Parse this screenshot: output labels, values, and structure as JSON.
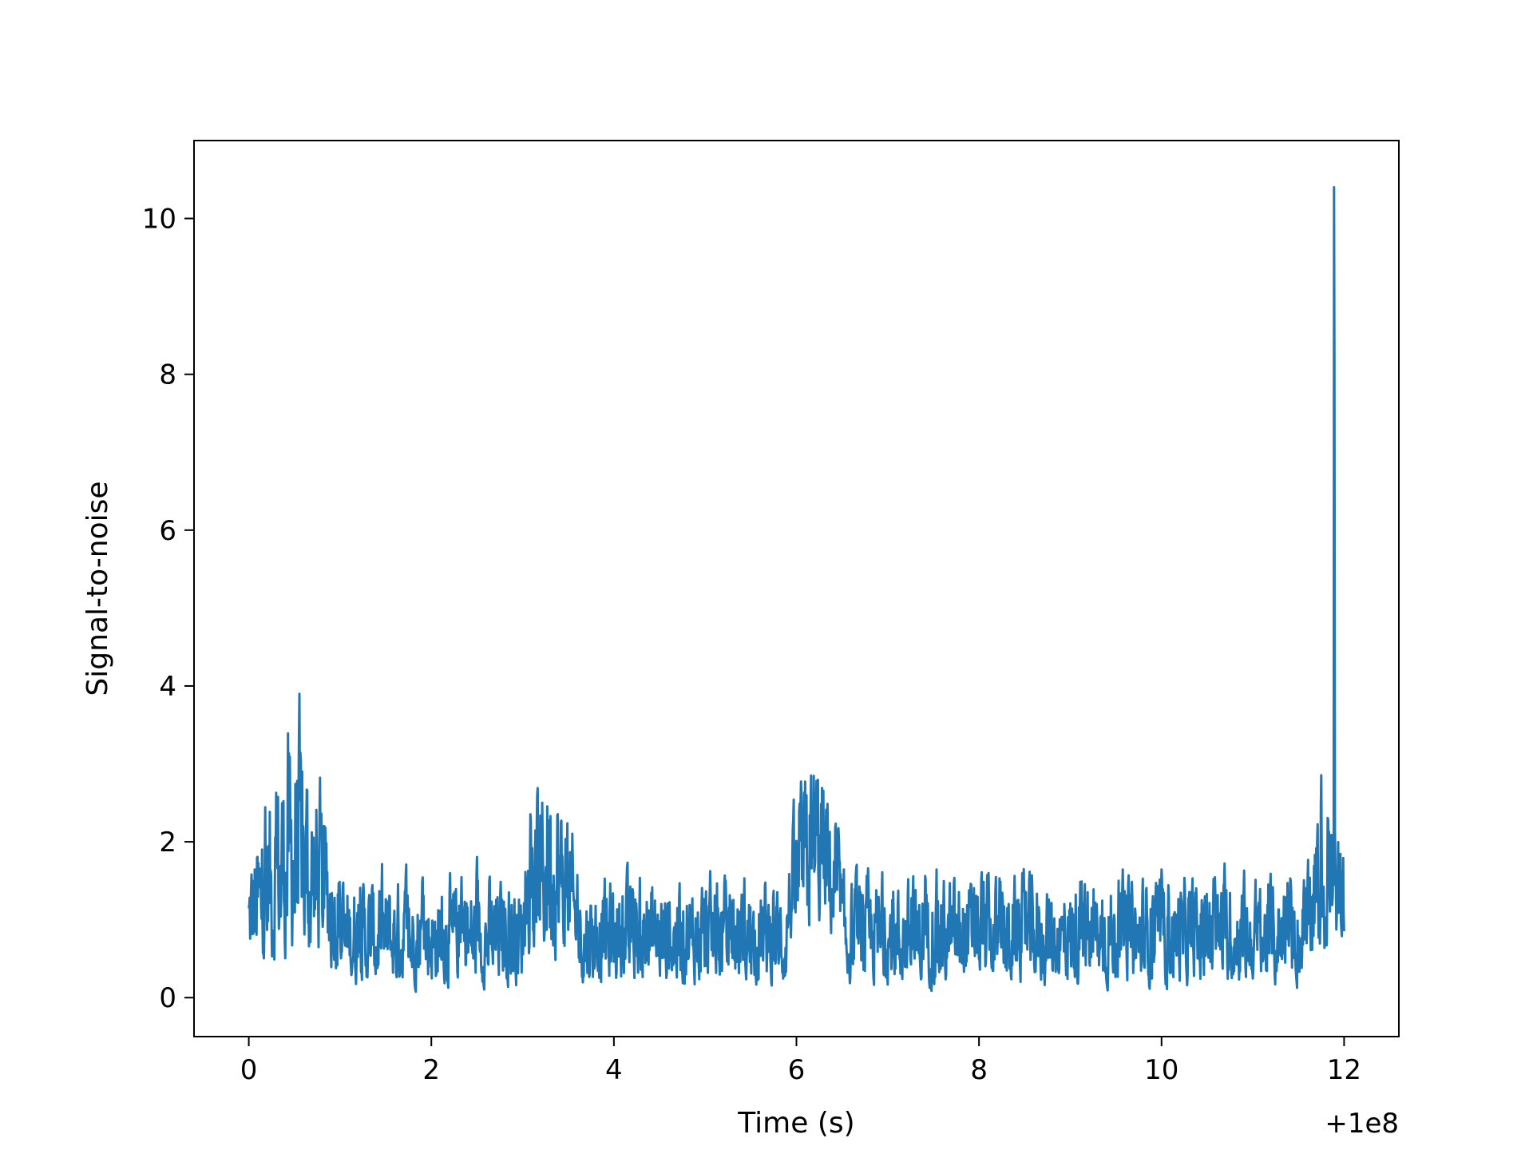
{
  "chart_data": {
    "type": "line",
    "title": "",
    "xlabel": "Time (s)",
    "ylabel": "Signal-to-noise",
    "x_offset_label": "+1e8",
    "xlim": [
      -0.6,
      12.6
    ],
    "ylim": [
      -0.5,
      11.0
    ],
    "x_ticks": [
      0,
      2,
      4,
      6,
      8,
      10,
      12
    ],
    "x_tick_labels": [
      "0",
      "2",
      "4",
      "6",
      "8",
      "10",
      "12"
    ],
    "y_ticks": [
      0,
      2,
      4,
      6,
      8,
      10
    ],
    "y_tick_labels": [
      "0",
      "2",
      "4",
      "6",
      "8",
      "10"
    ],
    "grid": false,
    "legend": "none",
    "line_color": "#2077b4",
    "series": [
      {
        "x_range": [
          0,
          12
        ],
        "samples": 2400,
        "noise_floor": [
          0.05,
          1.8
        ],
        "elevated_segments": [
          {
            "x": [
              0.0,
              1.0
            ],
            "low": 0.2,
            "high": 4.4
          },
          {
            "x": [
              3.0,
              3.6
            ],
            "low": 0.3,
            "high": 4.0
          },
          {
            "x": [
              5.9,
              6.5
            ],
            "low": 0.6,
            "high": 4.0
          },
          {
            "x": [
              11.6,
              12.0
            ],
            "low": 0.3,
            "high": 3.7
          }
        ],
        "peak": {
          "x": 11.89,
          "y": 10.4
        }
      }
    ]
  }
}
